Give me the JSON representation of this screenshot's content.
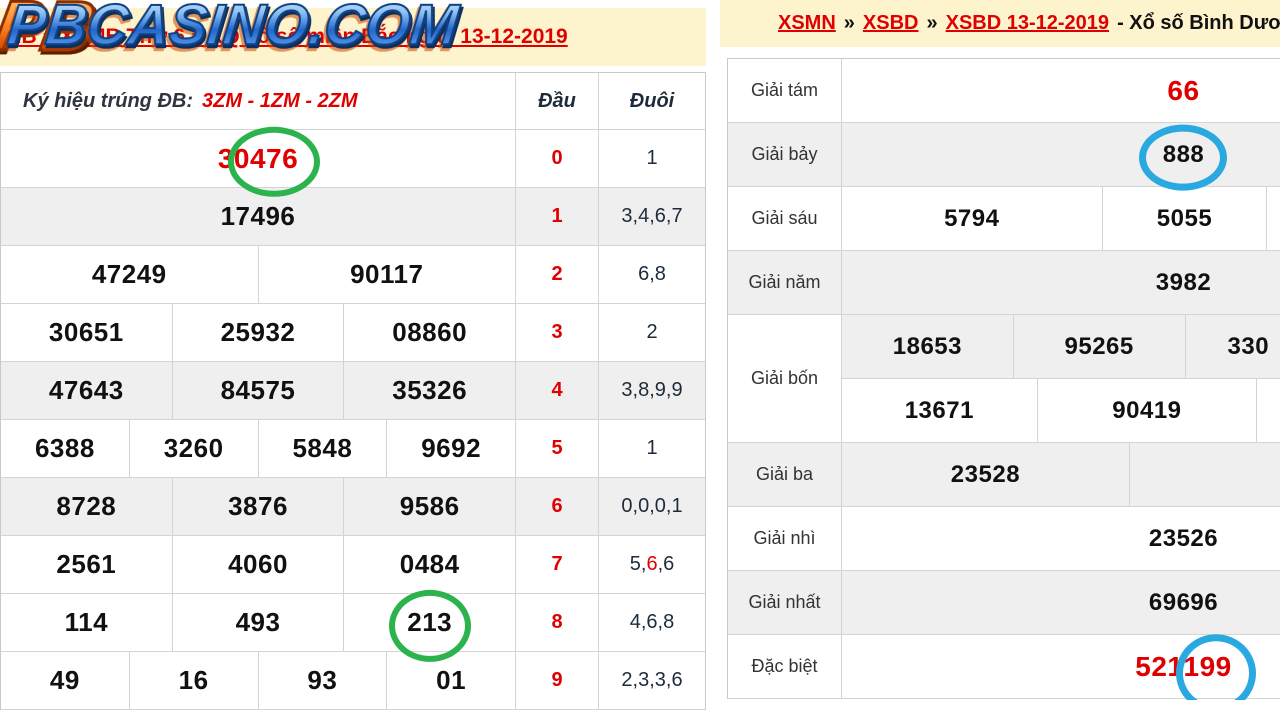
{
  "colors": {
    "accent_red": "#e00000",
    "header_yellow": "#fdf3cd",
    "circle_green": "#2db34e",
    "circle_blue": "#2aa9e0",
    "row_gray": "#efefef"
  },
  "watermark": {
    "logo": "PB",
    "text": "PBCASINO.COM"
  },
  "left": {
    "title": "MB » XSMB Thứ 6 » KQ xổ số miền Bắc ngày 13-12-2019",
    "header": {
      "label": "Ký hiệu trúng ĐB:",
      "value": "3ZM - 1ZM - 2ZM",
      "dau": "Đầu",
      "duoi": "Đuôi"
    },
    "rows": [
      {
        "gray": false,
        "cells": [
          {
            "pre": "30",
            "circled": "476",
            "circle": "green",
            "red": true,
            "big": true
          }
        ],
        "dau": "0",
        "duoi": [
          {
            "t": "1"
          }
        ]
      },
      {
        "gray": true,
        "cells": [
          {
            "t": "17496"
          }
        ],
        "dau": "1",
        "duoi": [
          {
            "t": "3,4,6,7"
          }
        ]
      },
      {
        "gray": false,
        "cells": [
          {
            "t": "47249"
          },
          {
            "t": "90117"
          }
        ],
        "dau": "2",
        "duoi": [
          {
            "t": "6,8"
          }
        ]
      },
      {
        "gray": false,
        "cells": [
          {
            "t": "30651"
          },
          {
            "t": "25932"
          },
          {
            "t": "08860"
          }
        ],
        "dau": "3",
        "duoi": [
          {
            "t": "2"
          }
        ]
      },
      {
        "gray": true,
        "cells": [
          {
            "t": "47643"
          },
          {
            "t": "84575"
          },
          {
            "t": "35326"
          }
        ],
        "dau": "4",
        "duoi": [
          {
            "t": "3,8,9,9"
          }
        ]
      },
      {
        "gray": false,
        "cells": [
          {
            "t": "6388"
          },
          {
            "t": "3260"
          },
          {
            "t": "5848"
          },
          {
            "t": "9692"
          }
        ],
        "dau": "5",
        "duoi": [
          {
            "t": "1"
          }
        ]
      },
      {
        "gray": true,
        "cells": [
          {
            "t": "8728"
          },
          {
            "t": "3876"
          },
          {
            "t": "9586"
          }
        ],
        "dau": "6",
        "duoi": [
          {
            "t": "0,0,0,1"
          }
        ]
      },
      {
        "gray": false,
        "cells": [
          {
            "t": "2561"
          },
          {
            "t": "4060"
          },
          {
            "t": "0484"
          }
        ],
        "dau": "7",
        "duoi": [
          {
            "t": "5,"
          },
          {
            "t": "6",
            "red": true
          },
          {
            "t": ",6"
          }
        ]
      },
      {
        "gray": false,
        "cells": [
          {
            "t": "114"
          },
          {
            "t": "493"
          },
          {
            "circled": "213",
            "circle": "green"
          }
        ],
        "dau": "8",
        "duoi": [
          {
            "t": "4,6,8"
          }
        ]
      },
      {
        "gray": false,
        "cells": [
          {
            "t": "49"
          },
          {
            "t": "16"
          },
          {
            "t": "93"
          },
          {
            "t": "01"
          }
        ],
        "dau": "9",
        "duoi": [
          {
            "t": "2,3,3,6"
          }
        ]
      }
    ]
  },
  "right": {
    "breadcrumb": [
      {
        "t": "XSMN"
      },
      {
        "t": "XSBD"
      },
      {
        "t": "XSBD 13-12-2019"
      }
    ],
    "separator": "»",
    "suffix": "- Xổ số Bình Dương",
    "rows": [
      {
        "label": "Giải tám",
        "lines": [
          {
            "gray": false,
            "cells": [
              {
                "t": "66",
                "red": true,
                "big": true
              }
            ]
          }
        ]
      },
      {
        "label": "Giải bảy",
        "lines": [
          {
            "gray": true,
            "cells": [
              {
                "circled": "888",
                "circle": "blue"
              }
            ]
          }
        ]
      },
      {
        "label": "Giải sáu",
        "lines": [
          {
            "gray": false,
            "cells": [
              {
                "t": "5794",
                "w": "38%"
              },
              {
                "t": "5055",
                "w": "24%"
              },
              {
                "t": "",
                "w": "38%"
              }
            ]
          }
        ]
      },
      {
        "label": "Giải năm",
        "lines": [
          {
            "gray": true,
            "cells": [
              {
                "t": "3982"
              }
            ]
          }
        ]
      },
      {
        "label": "Giải bốn",
        "lines": [
          {
            "gray": true,
            "cells": [
              {
                "t": "18653",
                "w": "25%"
              },
              {
                "t": "95265",
                "w": "25%"
              },
              {
                "t": "330",
                "w": "25%",
                "shift": true
              },
              {
                "t": "",
                "w": "25%"
              }
            ]
          },
          {
            "gray": false,
            "cells": [
              {
                "t": "13671",
                "w": "28.5%"
              },
              {
                "t": "90419",
                "w": "32%"
              },
              {
                "t": "",
                "w": "39.5%"
              }
            ]
          }
        ]
      },
      {
        "label": "Giải ba",
        "lines": [
          {
            "gray": true,
            "cells": [
              {
                "t": "23528",
                "w": "42%"
              },
              {
                "t": "",
                "w": "58%"
              }
            ]
          }
        ]
      },
      {
        "label": "Giải nhì",
        "lines": [
          {
            "gray": false,
            "cells": [
              {
                "t": "23526"
              }
            ]
          }
        ]
      },
      {
        "label": "Giải nhất",
        "lines": [
          {
            "gray": true,
            "cells": [
              {
                "t": "69696"
              }
            ]
          }
        ]
      },
      {
        "label": "Đặc biệt",
        "lines": [
          {
            "gray": false,
            "cells": [
              {
                "pre": "521",
                "circled": "199",
                "circle": "blue",
                "red": true,
                "big": true,
                "shiftRing": true
              }
            ]
          }
        ]
      }
    ]
  }
}
